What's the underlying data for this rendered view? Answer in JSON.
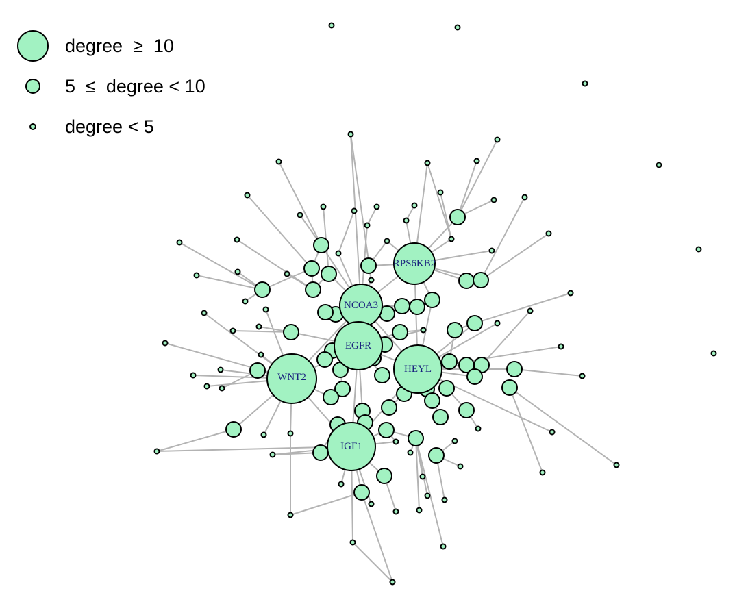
{
  "figure": {
    "node_color": "#a2f2c2",
    "edge_color": "#b3b3b3",
    "label_color": "#1a237e"
  },
  "legend": {
    "items": [
      {
        "label": "degree  ≥  10",
        "size": "large"
      },
      {
        "label": "5  ≤  degree < 10",
        "size": "medium"
      },
      {
        "label": "degree < 5",
        "size": "small"
      }
    ]
  },
  "hubs": [
    {
      "label": "RPS6KB2"
    },
    {
      "label": "NCOA3"
    },
    {
      "label": "EGFR"
    },
    {
      "label": "HEYL"
    },
    {
      "label": "WNT2"
    },
    {
      "label": "IGF1"
    }
  ]
}
